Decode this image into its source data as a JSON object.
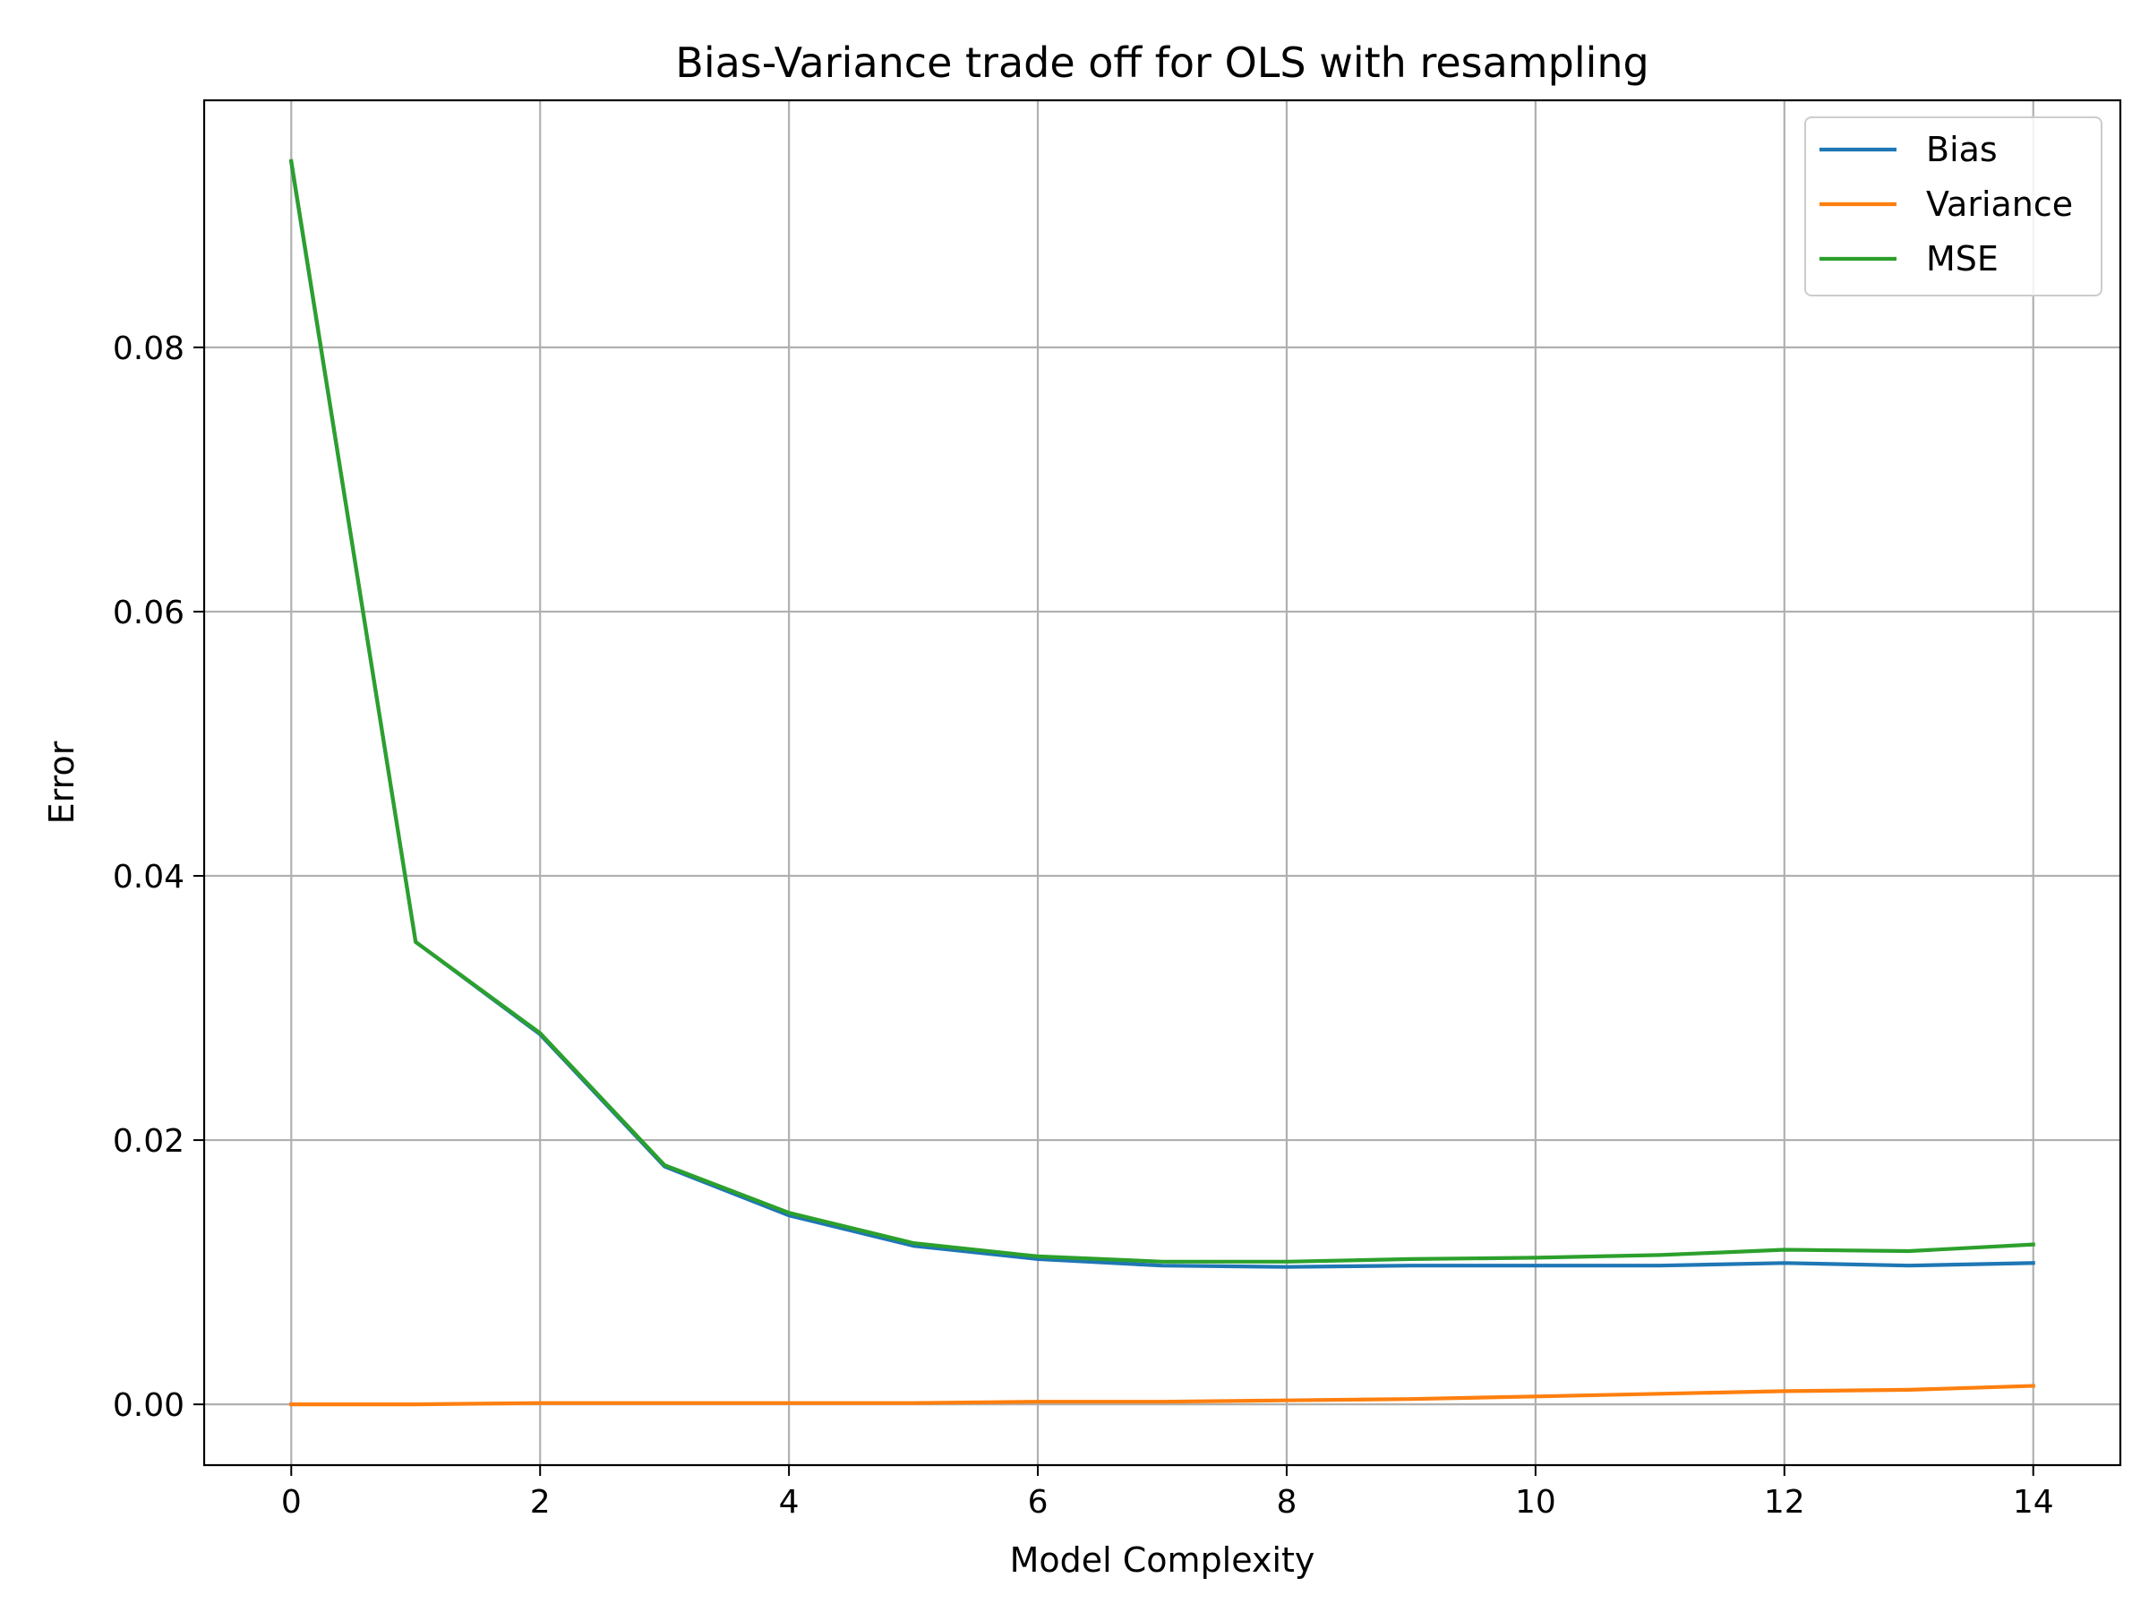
{
  "chart_data": {
    "type": "line",
    "title": "Bias-Variance trade off for OLS with resampling",
    "xlabel": "Model Complexity",
    "ylabel": "Error",
    "x": [
      0,
      1,
      2,
      3,
      4,
      5,
      6,
      7,
      8,
      9,
      10,
      11,
      12,
      13,
      14
    ],
    "xlim": [
      -0.7,
      14.7
    ],
    "ylim": [
      -0.0046,
      0.0987
    ],
    "xticks": [
      0,
      2,
      4,
      6,
      8,
      10,
      12,
      14
    ],
    "xtick_labels": [
      "0",
      "2",
      "4",
      "6",
      "8",
      "10",
      "12",
      "14"
    ],
    "yticks": [
      0.0,
      0.02,
      0.04,
      0.06,
      0.08
    ],
    "ytick_labels": [
      "0.00",
      "0.02",
      "0.04",
      "0.06",
      "0.08"
    ],
    "grid": true,
    "legend_position": "top-right",
    "series": [
      {
        "name": "Bias",
        "color": "#1f77b4",
        "values": [
          0.094,
          0.035,
          0.028,
          0.018,
          0.0143,
          0.012,
          0.011,
          0.0105,
          0.0104,
          0.0105,
          0.0105,
          0.0105,
          0.0107,
          0.0105,
          0.0107
        ]
      },
      {
        "name": "Variance",
        "color": "#ff7f0e",
        "values": [
          0.0,
          0.0,
          0.0001,
          0.0001,
          0.0001,
          0.0001,
          0.0002,
          0.0002,
          0.0003,
          0.0004,
          0.0006,
          0.0008,
          0.001,
          0.0011,
          0.0014
        ]
      },
      {
        "name": "MSE",
        "color": "#2ca02c",
        "values": [
          0.0941,
          0.035,
          0.0281,
          0.0181,
          0.0145,
          0.0122,
          0.0112,
          0.0108,
          0.0108,
          0.011,
          0.0111,
          0.0113,
          0.0117,
          0.0116,
          0.0121
        ]
      }
    ]
  }
}
